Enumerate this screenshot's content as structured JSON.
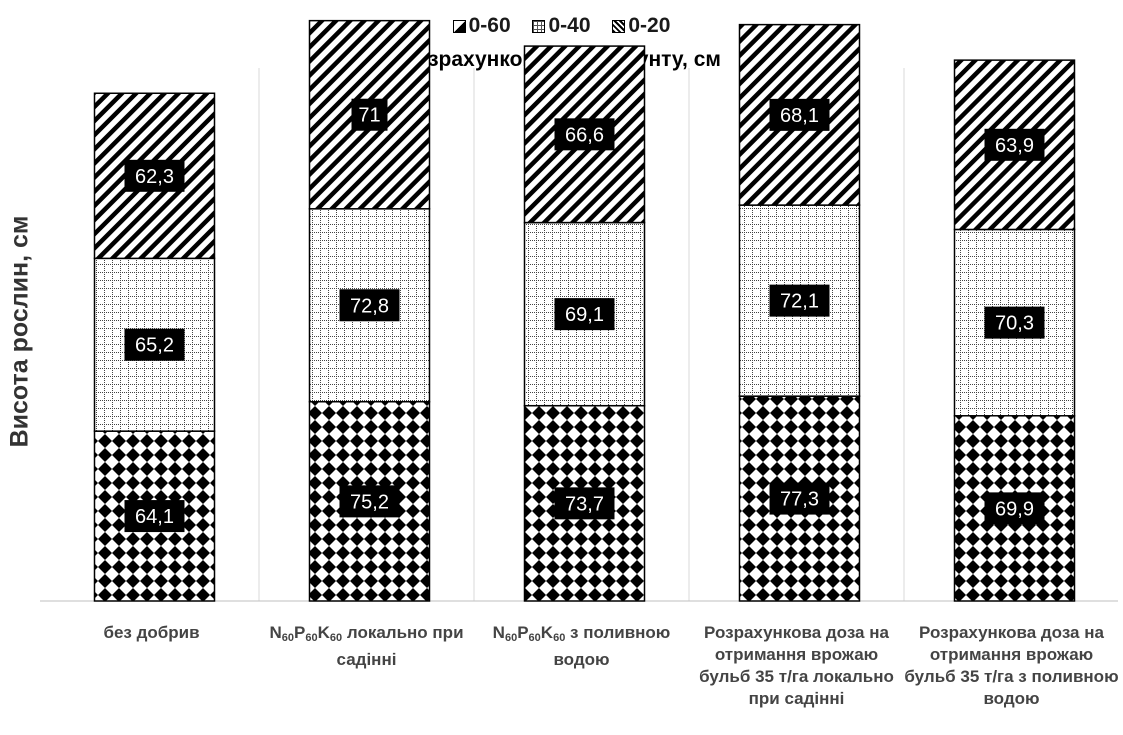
{
  "chart_data": {
    "type": "bar",
    "stacked": true,
    "legend_title": "Розрахунковий шар ґрунту, см",
    "legend_placement": "top",
    "ylabel": "Висота рослин, см",
    "xlabel": "",
    "ylim": [
      0,
      220
    ],
    "grid": false,
    "categories": [
      "без добрив",
      "N60P60K60 локально при садінні",
      "N60P60K60 з поливною водою",
      "Розрахункова доза на отримання врожаю бульб 35 т/га локально при садінні",
      "Розрахункова доза на отримання врожаю бульб 35 т/га з поливною водою"
    ],
    "series": [
      {
        "name": "0-60",
        "pattern": "diamond-checker",
        "values": [
          64.1,
          75.2,
          73.7,
          77.3,
          69.9
        ]
      },
      {
        "name": "0-40",
        "pattern": "dotted-grid",
        "values": [
          65.2,
          72.8,
          69.1,
          72.1,
          70.3
        ]
      },
      {
        "name": "0-20",
        "pattern": "diagonal-stripes",
        "values": [
          62.3,
          71,
          66.6,
          68.1,
          63.9
        ]
      }
    ],
    "data_labels": [
      [
        "64,1",
        "75,2",
        "73,7",
        "77,3",
        "69,9"
      ],
      [
        "65,2",
        "72,8",
        "69,1",
        "72,1",
        "70,3"
      ],
      [
        "62,3",
        "71",
        "66,6",
        "68,1",
        "63,9"
      ]
    ],
    "colors": {
      "ink": "#000000",
      "label_box": "#000000",
      "label_text": "#ffffff",
      "gridline": "#d9d9d9"
    }
  }
}
